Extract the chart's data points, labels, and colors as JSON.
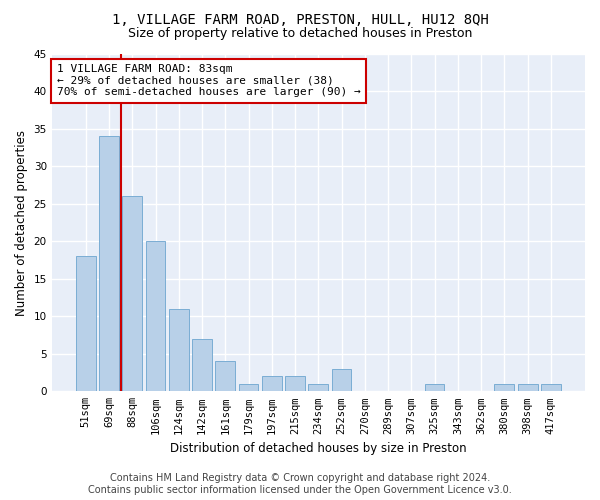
{
  "title": "1, VILLAGE FARM ROAD, PRESTON, HULL, HU12 8QH",
  "subtitle": "Size of property relative to detached houses in Preston",
  "xlabel": "Distribution of detached houses by size in Preston",
  "ylabel": "Number of detached properties",
  "categories": [
    "51sqm",
    "69sqm",
    "88sqm",
    "106sqm",
    "124sqm",
    "142sqm",
    "161sqm",
    "179sqm",
    "197sqm",
    "215sqm",
    "234sqm",
    "252sqm",
    "270sqm",
    "289sqm",
    "307sqm",
    "325sqm",
    "343sqm",
    "362sqm",
    "380sqm",
    "398sqm",
    "417sqm"
  ],
  "values": [
    18,
    34,
    26,
    20,
    11,
    7,
    4,
    1,
    2,
    2,
    1,
    3,
    0,
    0,
    0,
    1,
    0,
    0,
    1,
    1,
    1
  ],
  "bar_color": "#b8d0e8",
  "bar_edge_color": "#7aadd4",
  "property_line_index": 2,
  "property_line_color": "#cc0000",
  "annotation_text": "1 VILLAGE FARM ROAD: 83sqm\n← 29% of detached houses are smaller (38)\n70% of semi-detached houses are larger (90) →",
  "annotation_box_facecolor": "#ffffff",
  "annotation_box_edgecolor": "#cc0000",
  "ylim": [
    0,
    45
  ],
  "yticks": [
    0,
    5,
    10,
    15,
    20,
    25,
    30,
    35,
    40,
    45
  ],
  "footer_line1": "Contains HM Land Registry data © Crown copyright and database right 2024.",
  "footer_line2": "Contains public sector information licensed under the Open Government Licence v3.0.",
  "plot_bg_color": "#e8eef8",
  "fig_bg_color": "#ffffff",
  "grid_color": "#ffffff",
  "title_fontsize": 10,
  "subtitle_fontsize": 9,
  "axis_label_fontsize": 8.5,
  "tick_fontsize": 7.5,
  "annotation_fontsize": 8,
  "footer_fontsize": 7
}
